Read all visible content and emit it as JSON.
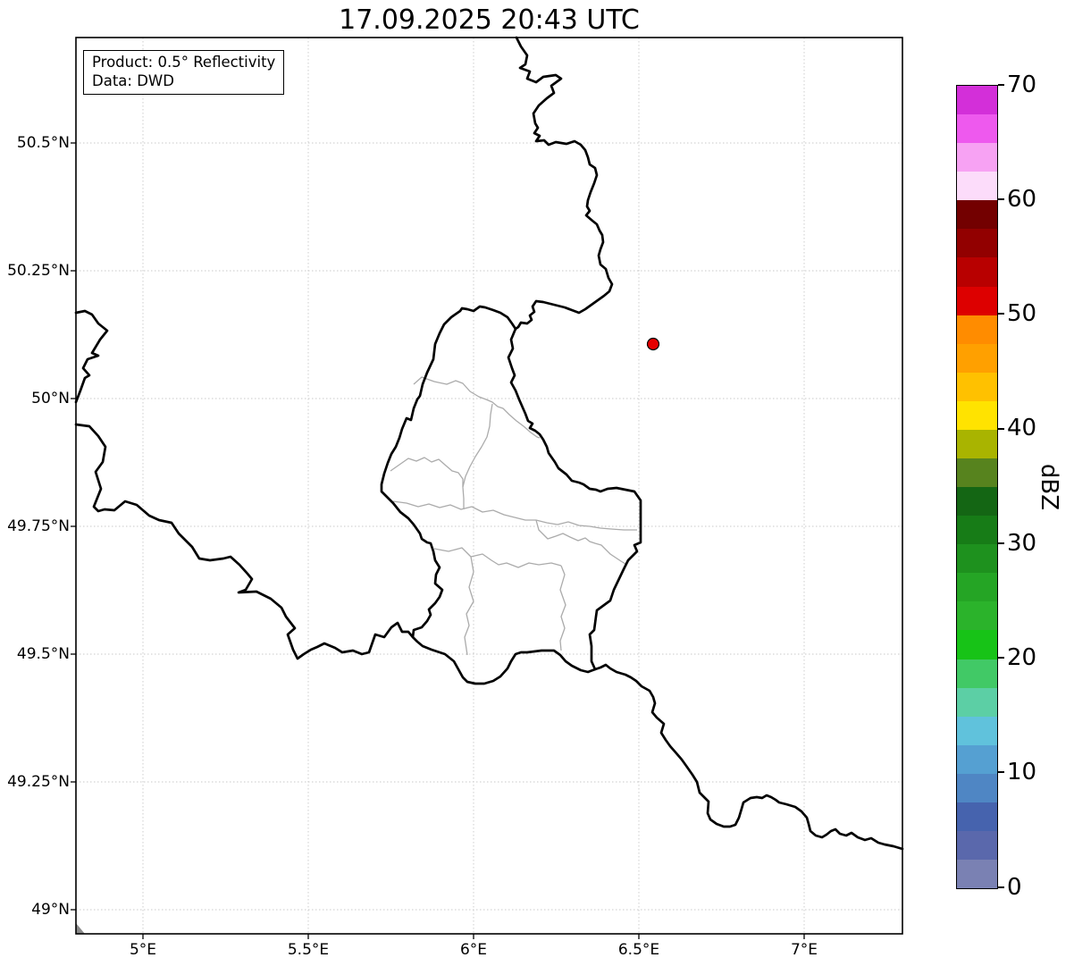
{
  "title": "17.09.2025 20:43 UTC",
  "info_box": {
    "product_line": "Product: 0.5° Reflectivity",
    "data_line": "Data: DWD"
  },
  "axes": {
    "lat_ticks": [
      "50.5°N",
      "50.25°N",
      "50°N",
      "49.75°N",
      "49.5°N",
      "49.25°N",
      "49°N"
    ],
    "lon_ticks": [
      "5°E",
      "5.5°E",
      "6°E",
      "6.5°E",
      "7°E"
    ]
  },
  "colorbar": {
    "label": "dBZ",
    "tick_labels": [
      "70",
      "60",
      "50",
      "40",
      "30",
      "20",
      "10",
      "0"
    ],
    "range_min": 0,
    "range_max": 70,
    "step_dbz": 2.5,
    "colors_top_to_bottom": [
      "#d32fd9",
      "#ee59ee",
      "#f7a2f3",
      "#fcdcfa",
      "#730000",
      "#920000",
      "#b80000",
      "#dd0000",
      "#ff8c00",
      "#ffa000",
      "#ffc100",
      "#ffe300",
      "#a9b400",
      "#57831e",
      "#146614",
      "#177c17",
      "#1e911e",
      "#25a525",
      "#2bb32b",
      "#17c317",
      "#41c966",
      "#5ccfa5",
      "#60c2dc",
      "#55a0d2",
      "#4f86c4",
      "#4663ae",
      "#5a68ac",
      "#7a81b3"
    ]
  },
  "marker": {
    "fill": "#e50000",
    "edge": "#000000"
  },
  "map_style": {
    "country_border": "#000000",
    "district_border": "#ababab",
    "gridline": "#c9c9c9",
    "frame": "#000000",
    "corner_patch": "#8a8a8a"
  }
}
